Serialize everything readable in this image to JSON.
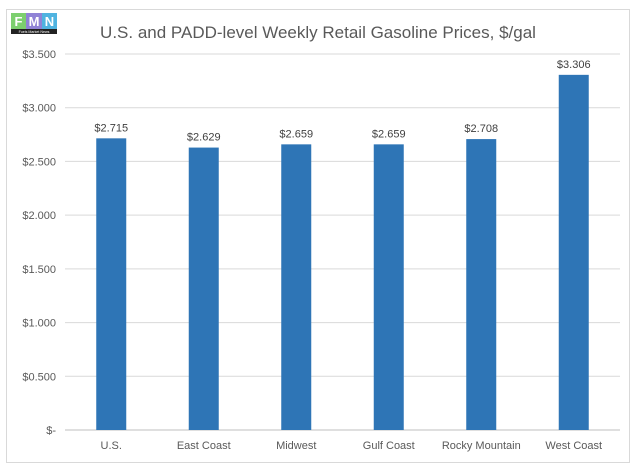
{
  "logo": {
    "letters": [
      "F",
      "M",
      "N"
    ],
    "caption": "Fuels Market News"
  },
  "chart_data": {
    "type": "bar",
    "title": "U.S. and PADD-level Weekly Retail Gasoline Prices, $/gal",
    "xlabel": "",
    "ylabel": "",
    "categories": [
      "U.S.",
      "East Coast",
      "Midwest",
      "Gulf Coast",
      "Rocky Mountain",
      "West Coast"
    ],
    "values": [
      2.715,
      2.629,
      2.659,
      2.659,
      2.708,
      3.306
    ],
    "data_labels": [
      "$2.715",
      "$2.629",
      "$2.659",
      "$2.659",
      "$2.708",
      "$3.306"
    ],
    "ylim": [
      0,
      3.5
    ],
    "yticks": [
      0,
      0.5,
      1,
      1.5,
      2,
      2.5,
      3,
      3.5
    ],
    "ytick_labels": [
      "$-",
      "$0.500",
      "$1.000",
      "$1.500",
      "$2.000",
      "$2.500",
      "$3.000",
      "$3.500"
    ],
    "grid": true,
    "bar_color": "#2E75B6",
    "legend": "none"
  }
}
